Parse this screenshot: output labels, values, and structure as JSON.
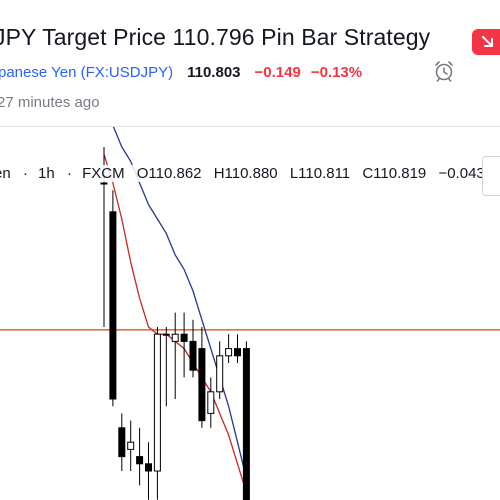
{
  "header": {
    "title": "JPY Target Price 110.796 Pin Bar Strategy",
    "symbol_name": "panese Yen",
    "symbol_ticker": "(FX:USDJPY)",
    "price": "110.803",
    "change": "−0.149",
    "change_pct": "−0.13%",
    "time_ago": "27 minutes ago"
  },
  "legend": {
    "symbol": "en",
    "sep1": "·",
    "interval": "1h",
    "sep2": "·",
    "source": "FXCM",
    "open": "O110.862",
    "high": "H110.880",
    "low": "L110.811",
    "close": "C110.819",
    "change": "−0.043",
    "paren": "(−"
  },
  "colors": {
    "accent": "#2962ff",
    "down": "#f23645",
    "candle": "#000000",
    "ma_fast": "#c62828",
    "ma_slow": "#283593",
    "target_line": "#d84315"
  },
  "chart_data": {
    "type": "candlestick",
    "target_line": 110.796,
    "ylim": [
      110.55,
      111.05
    ],
    "candles": [
      {
        "o": 111.0,
        "h": 111.05,
        "l": 110.8,
        "c": 111.0
      },
      {
        "o": 110.96,
        "h": 110.99,
        "l": 110.69,
        "c": 110.7
      },
      {
        "o": 110.66,
        "h": 110.68,
        "l": 110.6,
        "c": 110.62
      },
      {
        "o": 110.63,
        "h": 110.67,
        "l": 110.6,
        "c": 110.64
      },
      {
        "o": 110.62,
        "h": 110.66,
        "l": 110.58,
        "c": 110.61
      },
      {
        "o": 110.61,
        "h": 110.64,
        "l": 110.56,
        "c": 110.6
      },
      {
        "o": 110.6,
        "h": 110.8,
        "l": 110.56,
        "c": 110.79
      },
      {
        "o": 110.79,
        "h": 110.8,
        "l": 110.69,
        "c": 110.79
      },
      {
        "o": 110.78,
        "h": 110.82,
        "l": 110.7,
        "c": 110.79
      },
      {
        "o": 110.79,
        "h": 110.82,
        "l": 110.73,
        "c": 110.78
      },
      {
        "o": 110.78,
        "h": 110.81,
        "l": 110.73,
        "c": 110.74
      },
      {
        "o": 110.77,
        "h": 110.8,
        "l": 110.66,
        "c": 110.67
      },
      {
        "o": 110.68,
        "h": 110.73,
        "l": 110.66,
        "c": 110.71
      },
      {
        "o": 110.71,
        "h": 110.78,
        "l": 110.7,
        "c": 110.76
      },
      {
        "o": 110.76,
        "h": 110.79,
        "l": 110.75,
        "c": 110.77
      },
      {
        "o": 110.77,
        "h": 110.79,
        "l": 110.75,
        "c": 110.76
      },
      {
        "o": 110.77,
        "h": 110.78,
        "l": 110.55,
        "c": 110.55
      }
    ],
    "ma_fast": [
      111.04,
      111.0,
      110.95,
      110.89,
      110.84,
      110.8,
      110.79,
      110.79,
      110.78,
      110.77,
      110.75,
      110.73,
      110.71,
      110.68,
      110.65,
      110.61,
      110.57
    ],
    "ma_slow": [
      111.1,
      111.08,
      111.05,
      111.03,
      111.0,
      110.97,
      110.95,
      110.93,
      110.9,
      110.88,
      110.85,
      110.81,
      110.77,
      110.73,
      110.69,
      110.64,
      110.59
    ]
  }
}
